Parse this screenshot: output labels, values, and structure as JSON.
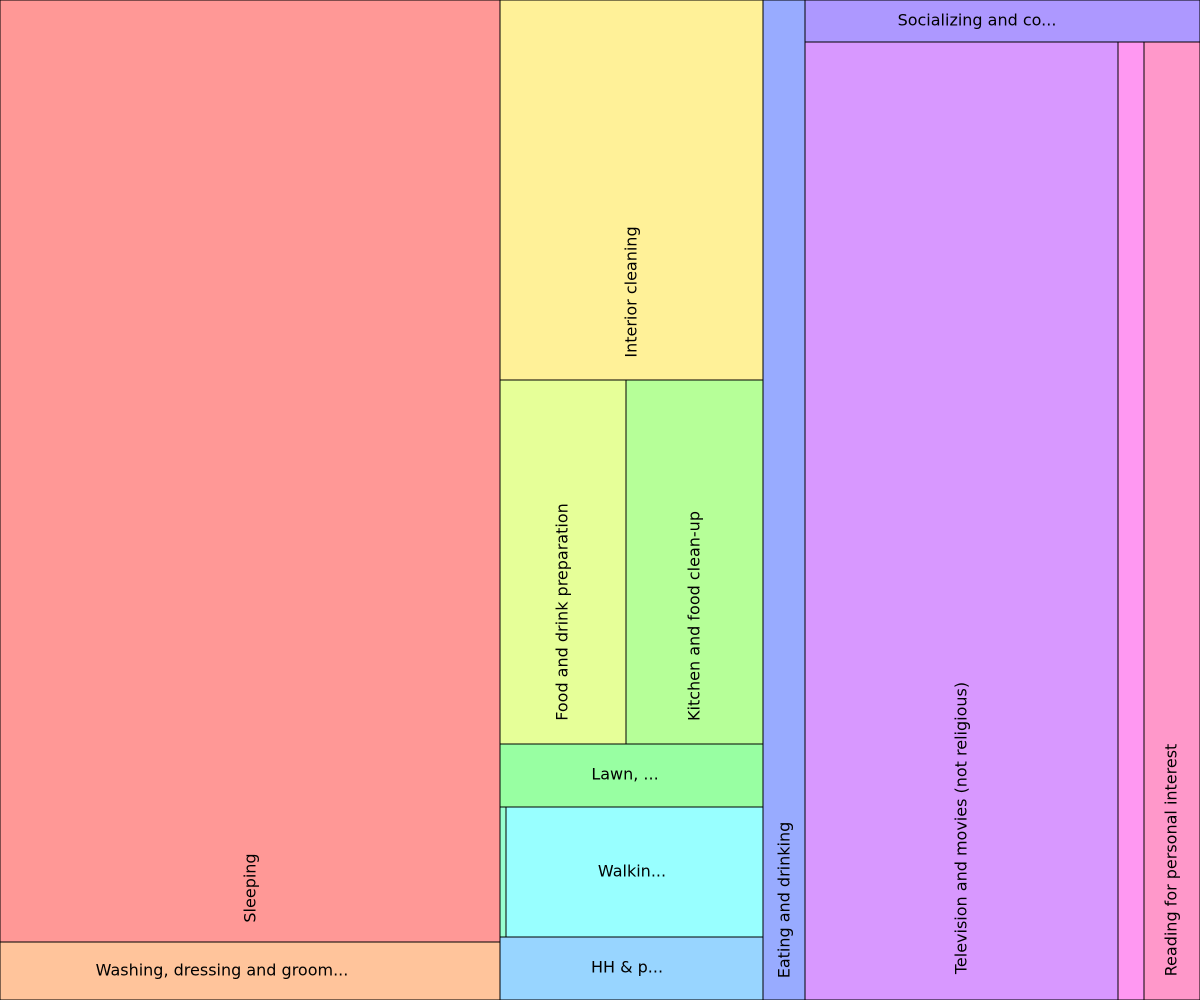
{
  "chart_data": {
    "type": "treemap",
    "tiles": [
      {
        "category": "Sleeping",
        "label": "Sleeping",
        "value": 471000,
        "color": "#ff9896"
      },
      {
        "category": "Washing, dressing and grooming oneself",
        "label": "Washing, dressing and groom...",
        "value": 29000,
        "color": "#ffc49b"
      },
      {
        "category": "Interior cleaning",
        "label": "Interior cleaning",
        "value": 100000,
        "color": "#fff198"
      },
      {
        "category": "Food and drink preparation",
        "label": "Food and drink preparation",
        "value": 46000,
        "color": "#e6ff98"
      },
      {
        "category": "Kitchen and food clean-up",
        "label": "Kitchen and food clean-up",
        "value": 50000,
        "color": "#b6ff98"
      },
      {
        "category": "Lawn, garden, and houseplants",
        "label": "Lawn, ...",
        "value": 16500,
        "color": "#98ffa2"
      },
      {
        "category": "",
        "label": "",
        "value": 800,
        "color": "#98ffd0"
      },
      {
        "category": "Walking",
        "label": "Walkin...",
        "value": 33000,
        "color": "#98ffff"
      },
      {
        "category": "HH & p...",
        "label": "HH & p...",
        "value": 16500,
        "color": "#98d5ff"
      },
      {
        "category": "Eating and drinking",
        "label": "Eating and drinking",
        "value": 42000,
        "color": "#98abff"
      },
      {
        "category": "Socializing and communicating",
        "label": "Socializing and co...",
        "value": 16500,
        "color": "#ad98ff"
      },
      {
        "category": "Television and movies (not religious)",
        "label": "Television and movies (not religious)",
        "value": 299000,
        "color": "#d898ff"
      },
      {
        "category": "",
        "label": "",
        "value": 25000,
        "color": "#ff98f2"
      },
      {
        "category": "Reading for personal interest",
        "label": "Reading for personal interest",
        "value": 53000,
        "color": "#ff98ca"
      }
    ]
  }
}
